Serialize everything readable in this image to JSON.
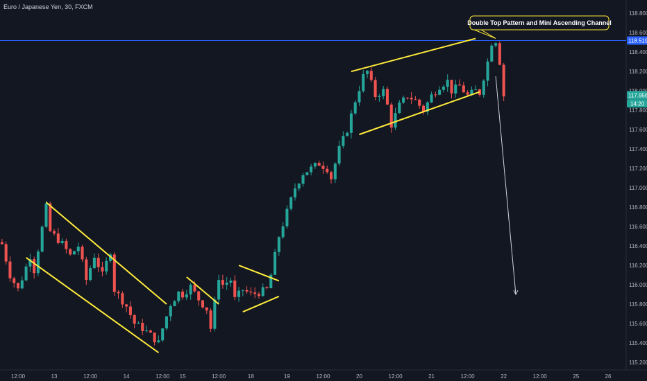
{
  "title": "Euro / Japanese Yen, 30, FXCM",
  "annotation": "Double Top Pattern and Mini Ascending Channel",
  "colors": {
    "background": "#131722",
    "up": "#26a69a",
    "down": "#ef5350",
    "trendline": "#ffeb3b",
    "hline": "#2962ff",
    "arrow": "#d1d4dc",
    "axis_text": "#b2b5be"
  },
  "chart_data": {
    "type": "candlestick",
    "symbol": "Euro / Japanese Yen",
    "interval": "30",
    "source": "FXCM",
    "y_ticks": [
      "118.800",
      "118.600",
      "118.400",
      "118.200",
      "118.000",
      "117.800",
      "117.600",
      "117.400",
      "117.200",
      "117.000",
      "116.800",
      "116.600",
      "116.400",
      "116.200",
      "116.000",
      "115.800",
      "115.600",
      "115.400",
      "115.200"
    ],
    "x_ticks": [
      "12:00",
      "13",
      "12:00",
      "14",
      "12:00",
      "15",
      "12:00",
      "18",
      "19",
      "12:00",
      "20",
      "12:00",
      "21",
      "12:00",
      "22",
      "12:00",
      "25",
      "26"
    ],
    "horizontal_line": {
      "price": 118.519,
      "label": "118.519"
    },
    "last_price": {
      "price": 117.956,
      "label": "117.956",
      "countdown": "14:20"
    },
    "price_path": [
      [
        0,
        116.42
      ],
      [
        2,
        116.1
      ],
      [
        4,
        115.95
      ],
      [
        7,
        116.3
      ],
      [
        8,
        116.15
      ],
      [
        11,
        116.8
      ],
      [
        12,
        116.55
      ],
      [
        15,
        116.42
      ],
      [
        17,
        116.3
      ],
      [
        19,
        116.4
      ],
      [
        21,
        116.05
      ],
      [
        23,
        116.3
      ],
      [
        25,
        116.1
      ],
      [
        27,
        116.35
      ],
      [
        28,
        115.95
      ],
      [
        31,
        115.78
      ],
      [
        33,
        115.6
      ],
      [
        35,
        115.55
      ],
      [
        37,
        115.48
      ],
      [
        39,
        115.4
      ],
      [
        40,
        115.55
      ],
      [
        42,
        115.8
      ],
      [
        44,
        115.92
      ],
      [
        45,
        115.9
      ],
      [
        47,
        115.98
      ],
      [
        49,
        115.85
      ],
      [
        51,
        115.75
      ],
      [
        52,
        115.55
      ],
      [
        54,
        116.08
      ],
      [
        55,
        116.0
      ],
      [
        57,
        116.05
      ],
      [
        58,
        115.85
      ],
      [
        60,
        115.95
      ],
      [
        62,
        115.9
      ],
      [
        64,
        115.92
      ],
      [
        66,
        115.95
      ],
      [
        67,
        116.1
      ],
      [
        69,
        116.5
      ],
      [
        71,
        116.75
      ],
      [
        73,
        117.0
      ],
      [
        75,
        117.15
      ],
      [
        77,
        117.2
      ],
      [
        79,
        117.25
      ],
      [
        81,
        117.2
      ],
      [
        82,
        117.1
      ],
      [
        84,
        117.4
      ],
      [
        86,
        117.6
      ],
      [
        88,
        117.9
      ],
      [
        90,
        118.15
      ],
      [
        91,
        118.2
      ],
      [
        93,
        117.95
      ],
      [
        95,
        118.0
      ],
      [
        96,
        117.85
      ],
      [
        97,
        117.65
      ],
      [
        99,
        117.85
      ],
      [
        101,
        117.95
      ],
      [
        103,
        117.9
      ],
      [
        105,
        117.8
      ],
      [
        107,
        117.95
      ],
      [
        109,
        118.05
      ],
      [
        111,
        118.1
      ],
      [
        112,
        118.0
      ],
      [
        114,
        118.05
      ],
      [
        116,
        117.95
      ],
      [
        118,
        118.0
      ],
      [
        119,
        117.98
      ],
      [
        121,
        118.3
      ],
      [
        122,
        118.5
      ],
      [
        123,
        118.52
      ],
      [
        124,
        118.3
      ],
      [
        125,
        117.95
      ]
    ],
    "trendlines": [
      {
        "name": "descending-channel-upper",
        "points": [
          [
            11,
            116.85
          ],
          [
            41,
            115.8
          ]
        ]
      },
      {
        "name": "descending-channel-lower",
        "points": [
          [
            6,
            116.28
          ],
          [
            39,
            115.3
          ]
        ]
      },
      {
        "name": "small-down-trendline",
        "points": [
          [
            46,
            116.08
          ],
          [
            54,
            115.8
          ]
        ]
      },
      {
        "name": "flag-upper",
        "points": [
          [
            59,
            116.2
          ],
          [
            69,
            116.04
          ]
        ]
      },
      {
        "name": "flag-lower",
        "points": [
          [
            60,
            115.72
          ],
          [
            69,
            115.88
          ]
        ]
      },
      {
        "name": "ascending-channel-upper",
        "points": [
          [
            87,
            118.2
          ],
          [
            118,
            118.54
          ]
        ]
      },
      {
        "name": "ascending-channel-lower",
        "points": [
          [
            89,
            117.55
          ],
          [
            119,
            117.99
          ]
        ]
      }
    ],
    "projection_arrow": {
      "from": [
        123,
        118.15
      ],
      "to": [
        128,
        115.9
      ]
    },
    "xlim": [
      0,
      156
    ],
    "ylim": [
      115.15,
      118.88
    ],
    "grid": false,
    "legend": "none"
  }
}
